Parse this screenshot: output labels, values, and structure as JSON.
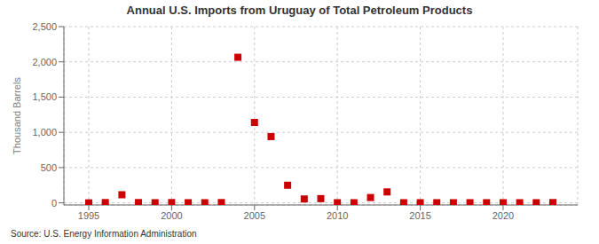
{
  "chart_data": {
    "type": "scatter",
    "title": "Annual U.S. Imports from Uruguay of Total Petroleum Products",
    "ylabel": "Thousand Barrels",
    "annotations": [
      "Source: U.S. Energy Information Administration"
    ],
    "x": [
      1995,
      1996,
      1997,
      1998,
      1999,
      2000,
      2001,
      2002,
      2003,
      2004,
      2005,
      2006,
      2007,
      2008,
      2009,
      2010,
      2011,
      2012,
      2013,
      2014,
      2015,
      2016,
      2017,
      2018,
      2019,
      2020,
      2021,
      2022,
      2023
    ],
    "values": [
      0,
      4,
      115,
      4,
      2,
      4,
      2,
      2,
      4,
      2065,
      1140,
      940,
      250,
      55,
      60,
      2,
      2,
      75,
      155,
      2,
      2,
      2,
      2,
      2,
      2,
      2,
      2,
      2,
      4
    ],
    "color": "#cc0000",
    "marker": "square",
    "xlim": [
      1993.5,
      2024.5
    ],
    "xticks": [
      1995,
      2000,
      2005,
      2010,
      2015,
      2020
    ],
    "ylim": [
      -30,
      2500
    ],
    "yticks": [
      0,
      500,
      {
        "value": 1000,
        "label": "1,000"
      },
      {
        "value": 1500,
        "label": "1,500"
      },
      {
        "value": 2000,
        "label": "2,000"
      },
      {
        "value": 2500,
        "label": "2,500"
      }
    ],
    "grid": true
  }
}
